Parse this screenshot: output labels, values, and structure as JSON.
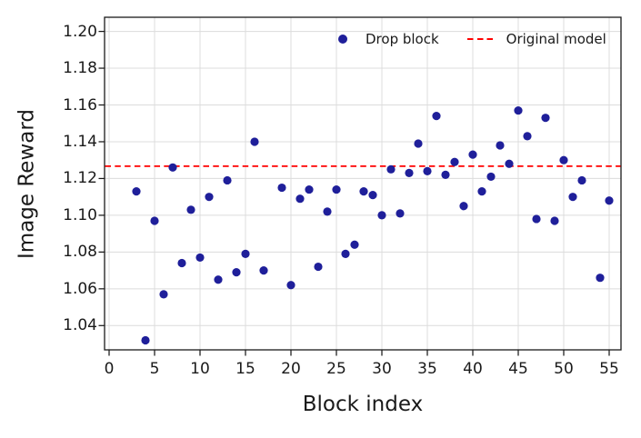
{
  "figure": {
    "xlabel": "Block index",
    "ylabel": "Image Reward"
  },
  "legend": {
    "items": [
      {
        "label": "Drop block",
        "marker": "dot-marker"
      },
      {
        "label": "Original model",
        "marker": "dashed-line-marker"
      }
    ]
  },
  "colors": {
    "scatter_point": "#1f1f9a",
    "reference_line": "#ff0000",
    "gridline": "#dcdcdc",
    "spine": "#1a1a1a",
    "text": "#1a1a1a"
  },
  "chart_data": {
    "type": "scatter",
    "title": "",
    "xlabel": "Block index",
    "ylabel": "Image Reward",
    "grid": true,
    "legend_position": "upper center inside",
    "xlim": [
      -0.5,
      56.3
    ],
    "ylim": [
      1.0268,
      1.2077
    ],
    "x_ticks": [
      0,
      5,
      10,
      15,
      20,
      25,
      30,
      35,
      40,
      45,
      50,
      55
    ],
    "x_tick_labels": [
      "0",
      "5",
      "10",
      "15",
      "20",
      "25",
      "30",
      "35",
      "40",
      "45",
      "50",
      "55"
    ],
    "y_ticks": [
      1.04,
      1.06,
      1.08,
      1.1,
      1.12,
      1.14,
      1.16,
      1.18,
      1.2
    ],
    "y_tick_labels": [
      "1.04",
      "1.06",
      "1.08",
      "1.10",
      "1.12",
      "1.14",
      "1.16",
      "1.18",
      "1.20"
    ],
    "series": [
      {
        "name": "Drop block",
        "type": "scatter",
        "color": "#1f1f9a",
        "points": [
          [
            3,
            1.113
          ],
          [
            4,
            1.032
          ],
          [
            5,
            1.097
          ],
          [
            6,
            1.057
          ],
          [
            7,
            1.126
          ],
          [
            8,
            1.074
          ],
          [
            9,
            1.103
          ],
          [
            10,
            1.077
          ],
          [
            11,
            1.11
          ],
          [
            12,
            1.065
          ],
          [
            13,
            1.119
          ],
          [
            14,
            1.069
          ],
          [
            15,
            1.079
          ],
          [
            16,
            1.14
          ],
          [
            17,
            1.07
          ],
          [
            19,
            1.115
          ],
          [
            20,
            1.062
          ],
          [
            21,
            1.109
          ],
          [
            22,
            1.114
          ],
          [
            23,
            1.072
          ],
          [
            24,
            1.102
          ],
          [
            25,
            1.114
          ],
          [
            26,
            1.079
          ],
          [
            27,
            1.084
          ],
          [
            28,
            1.113
          ],
          [
            29,
            1.111
          ],
          [
            30,
            1.1
          ],
          [
            31,
            1.125
          ],
          [
            32,
            1.101
          ],
          [
            33,
            1.123
          ],
          [
            34,
            1.139
          ],
          [
            35,
            1.124
          ],
          [
            36,
            1.154
          ],
          [
            37,
            1.122
          ],
          [
            38,
            1.129
          ],
          [
            39,
            1.105
          ],
          [
            40,
            1.133
          ],
          [
            41,
            1.113
          ],
          [
            42,
            1.121
          ],
          [
            43,
            1.138
          ],
          [
            44,
            1.128
          ],
          [
            45,
            1.157
          ],
          [
            46,
            1.143
          ],
          [
            47,
            1.098
          ],
          [
            48,
            1.153
          ],
          [
            49,
            1.097
          ],
          [
            50,
            1.13
          ],
          [
            51,
            1.11
          ],
          [
            52,
            1.119
          ],
          [
            54,
            1.066
          ],
          [
            55,
            1.108
          ]
        ]
      },
      {
        "name": "Original model",
        "type": "hline",
        "color": "#ff0000",
        "style": "dashed",
        "value": 1.1267
      }
    ]
  }
}
